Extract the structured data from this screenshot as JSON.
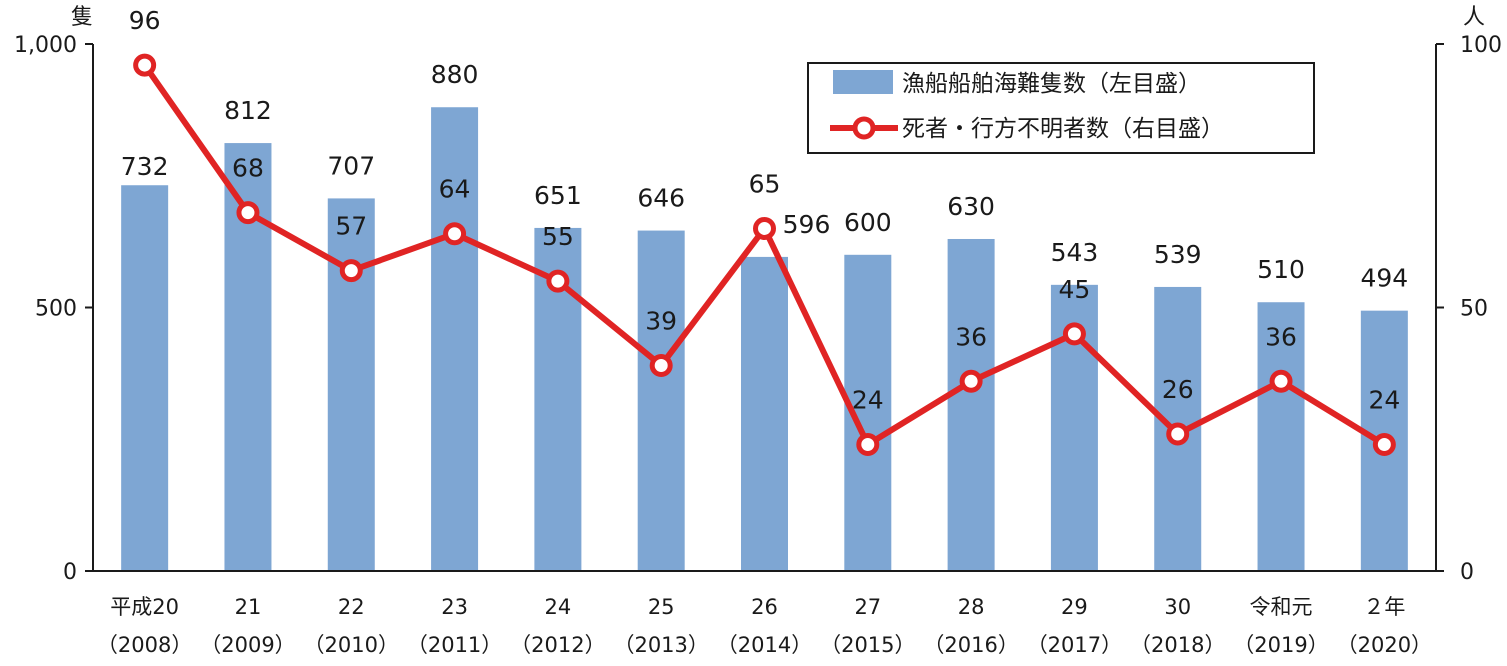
{
  "chart_data": {
    "type": "bar+line",
    "categories": [
      {
        "label": "平成20",
        "year": "（2008）"
      },
      {
        "label": "21",
        "year": "（2009）"
      },
      {
        "label": "22",
        "year": "（2010）"
      },
      {
        "label": "23",
        "year": "（2011）"
      },
      {
        "label": "24",
        "year": "（2012）"
      },
      {
        "label": "25",
        "year": "（2013）"
      },
      {
        "label": "26",
        "year": "（2014）"
      },
      {
        "label": "27",
        "year": "（2015）"
      },
      {
        "label": "28",
        "year": "（2016）"
      },
      {
        "label": "29",
        "year": "（2017）"
      },
      {
        "label": "30",
        "year": "（2018）"
      },
      {
        "label": "令和元",
        "year": "（2019）"
      },
      {
        "label": "２年",
        "year": "（2020）"
      }
    ],
    "series": [
      {
        "name": "漁船船舶海難隻数（左目盛）",
        "type": "bar",
        "axis": "left",
        "color": "#7ea6d3",
        "values": [
          732,
          812,
          707,
          880,
          651,
          646,
          596,
          600,
          630,
          543,
          539,
          510,
          494
        ]
      },
      {
        "name": "死者・行方不明者数（右目盛）",
        "type": "line",
        "axis": "right",
        "color": "#e02424",
        "values": [
          96,
          68,
          57,
          64,
          55,
          39,
          65,
          24,
          36,
          45,
          26,
          36,
          24
        ]
      }
    ],
    "left_axis": {
      "unit": "隻",
      "min": 0,
      "max": 1000,
      "ticks": [
        0,
        500,
        1000
      ],
      "tick_labels": [
        "0",
        "500",
        "1,000"
      ]
    },
    "right_axis": {
      "unit": "人",
      "min": 0,
      "max": 100,
      "ticks": [
        0,
        50,
        100
      ],
      "tick_labels": [
        "0",
        "50",
        "100"
      ]
    },
    "grid": false,
    "legend_position": "top-right"
  }
}
